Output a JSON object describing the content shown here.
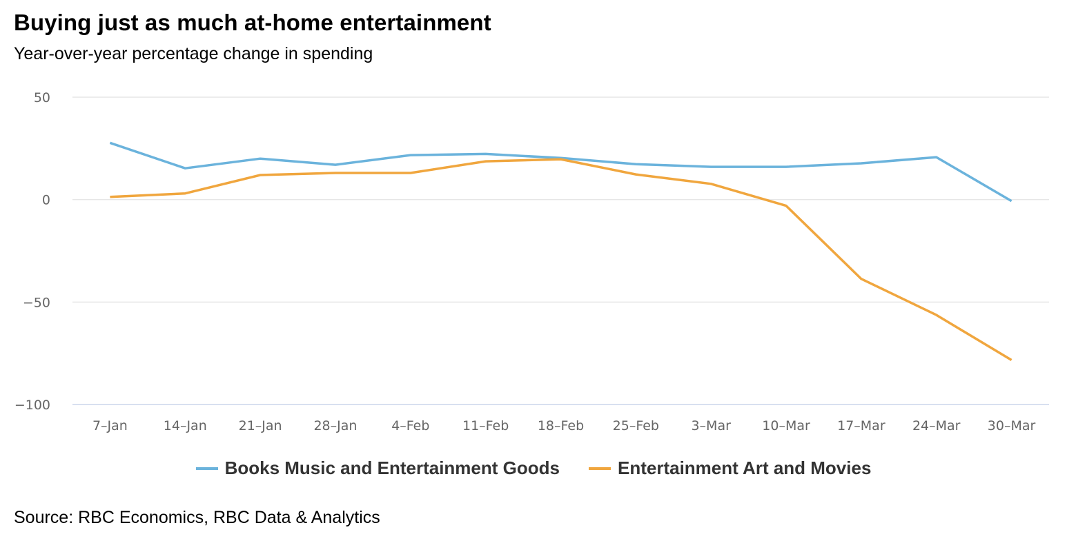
{
  "title": "Buying just as much at-home entertainment",
  "subtitle": "Year-over-year percentage change in spending",
  "source": "Source: RBC Economics, RBC Data & Analytics",
  "chart_data": {
    "type": "line",
    "title": "Buying just as much at-home entertainment",
    "subtitle": "Year-over-year percentage change in spending",
    "xlabel": "",
    "ylabel": "",
    "categories": [
      "7-Jan",
      "14-Jan",
      "21-Jan",
      "28-Jan",
      "4-Feb",
      "11-Feb",
      "18-Feb",
      "25-Feb",
      "3-Mar",
      "10-Mar",
      "17-Mar",
      "24-Mar",
      "30-Mar"
    ],
    "ylim": [
      -100,
      50
    ],
    "yticks": [
      50,
      0,
      -50,
      -100
    ],
    "ytick_labels": [
      "50",
      "0",
      "−50",
      "−100"
    ],
    "grid": true,
    "legend_position": "bottom-center",
    "series": [
      {
        "name": "Books Music and Entertainment Goods",
        "color": "#6bb3dc",
        "values": [
          27.7,
          15.3,
          20,
          17,
          21.7,
          22.3,
          20.3,
          17.3,
          16,
          16,
          17.7,
          20.7,
          -0.7
        ]
      },
      {
        "name": "Entertainment Art and Movies",
        "color": "#f0a63e",
        "values": [
          1.3,
          3,
          12,
          13,
          13,
          18.7,
          19.7,
          12.3,
          7.7,
          -3,
          -38.7,
          -56.3,
          -78.3
        ]
      }
    ]
  }
}
